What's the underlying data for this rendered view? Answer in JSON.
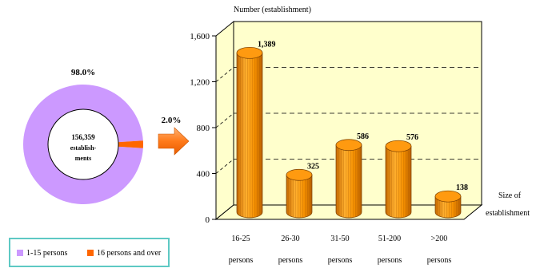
{
  "chart_data": [
    {
      "type": "pie",
      "subtype": "donut",
      "center_label_lines": [
        "156,359",
        "establish-",
        "ments"
      ],
      "slices": [
        {
          "label": "1-15 persons",
          "value": 98.0,
          "display": "98.0%",
          "color": "#cc99ff"
        },
        {
          "label": "16 persons and over",
          "value": 2.0,
          "display": "2.0%",
          "color": "#ff6600"
        }
      ],
      "legend_position": "bottom-left"
    },
    {
      "type": "bar",
      "style": "3d-cylinder",
      "ylabel": "Number (establishment)",
      "xlabel_lines": [
        "Size of",
        "establishment"
      ],
      "categories": [
        {
          "line1": "16-25",
          "line2": "persons"
        },
        {
          "line1": "26-30",
          "line2": "persons"
        },
        {
          "line1": "31-50",
          "line2": "persons"
        },
        {
          "line1": "51-200",
          "line2": "persons"
        },
        {
          "line1": ">200",
          "line2": "persons"
        }
      ],
      "values": [
        1389,
        325,
        586,
        576,
        138
      ],
      "value_labels": [
        "1,389",
        "325",
        "586",
        "576",
        "138"
      ],
      "ylim": [
        0,
        1600
      ],
      "yticks": [
        0,
        400,
        800,
        1200,
        1600
      ],
      "ytick_labels": [
        "0",
        "400",
        "800",
        "1,200",
        "1,600"
      ],
      "grid": true,
      "bar_color": "#ff9900",
      "wall_color": "#ffffcc"
    }
  ]
}
